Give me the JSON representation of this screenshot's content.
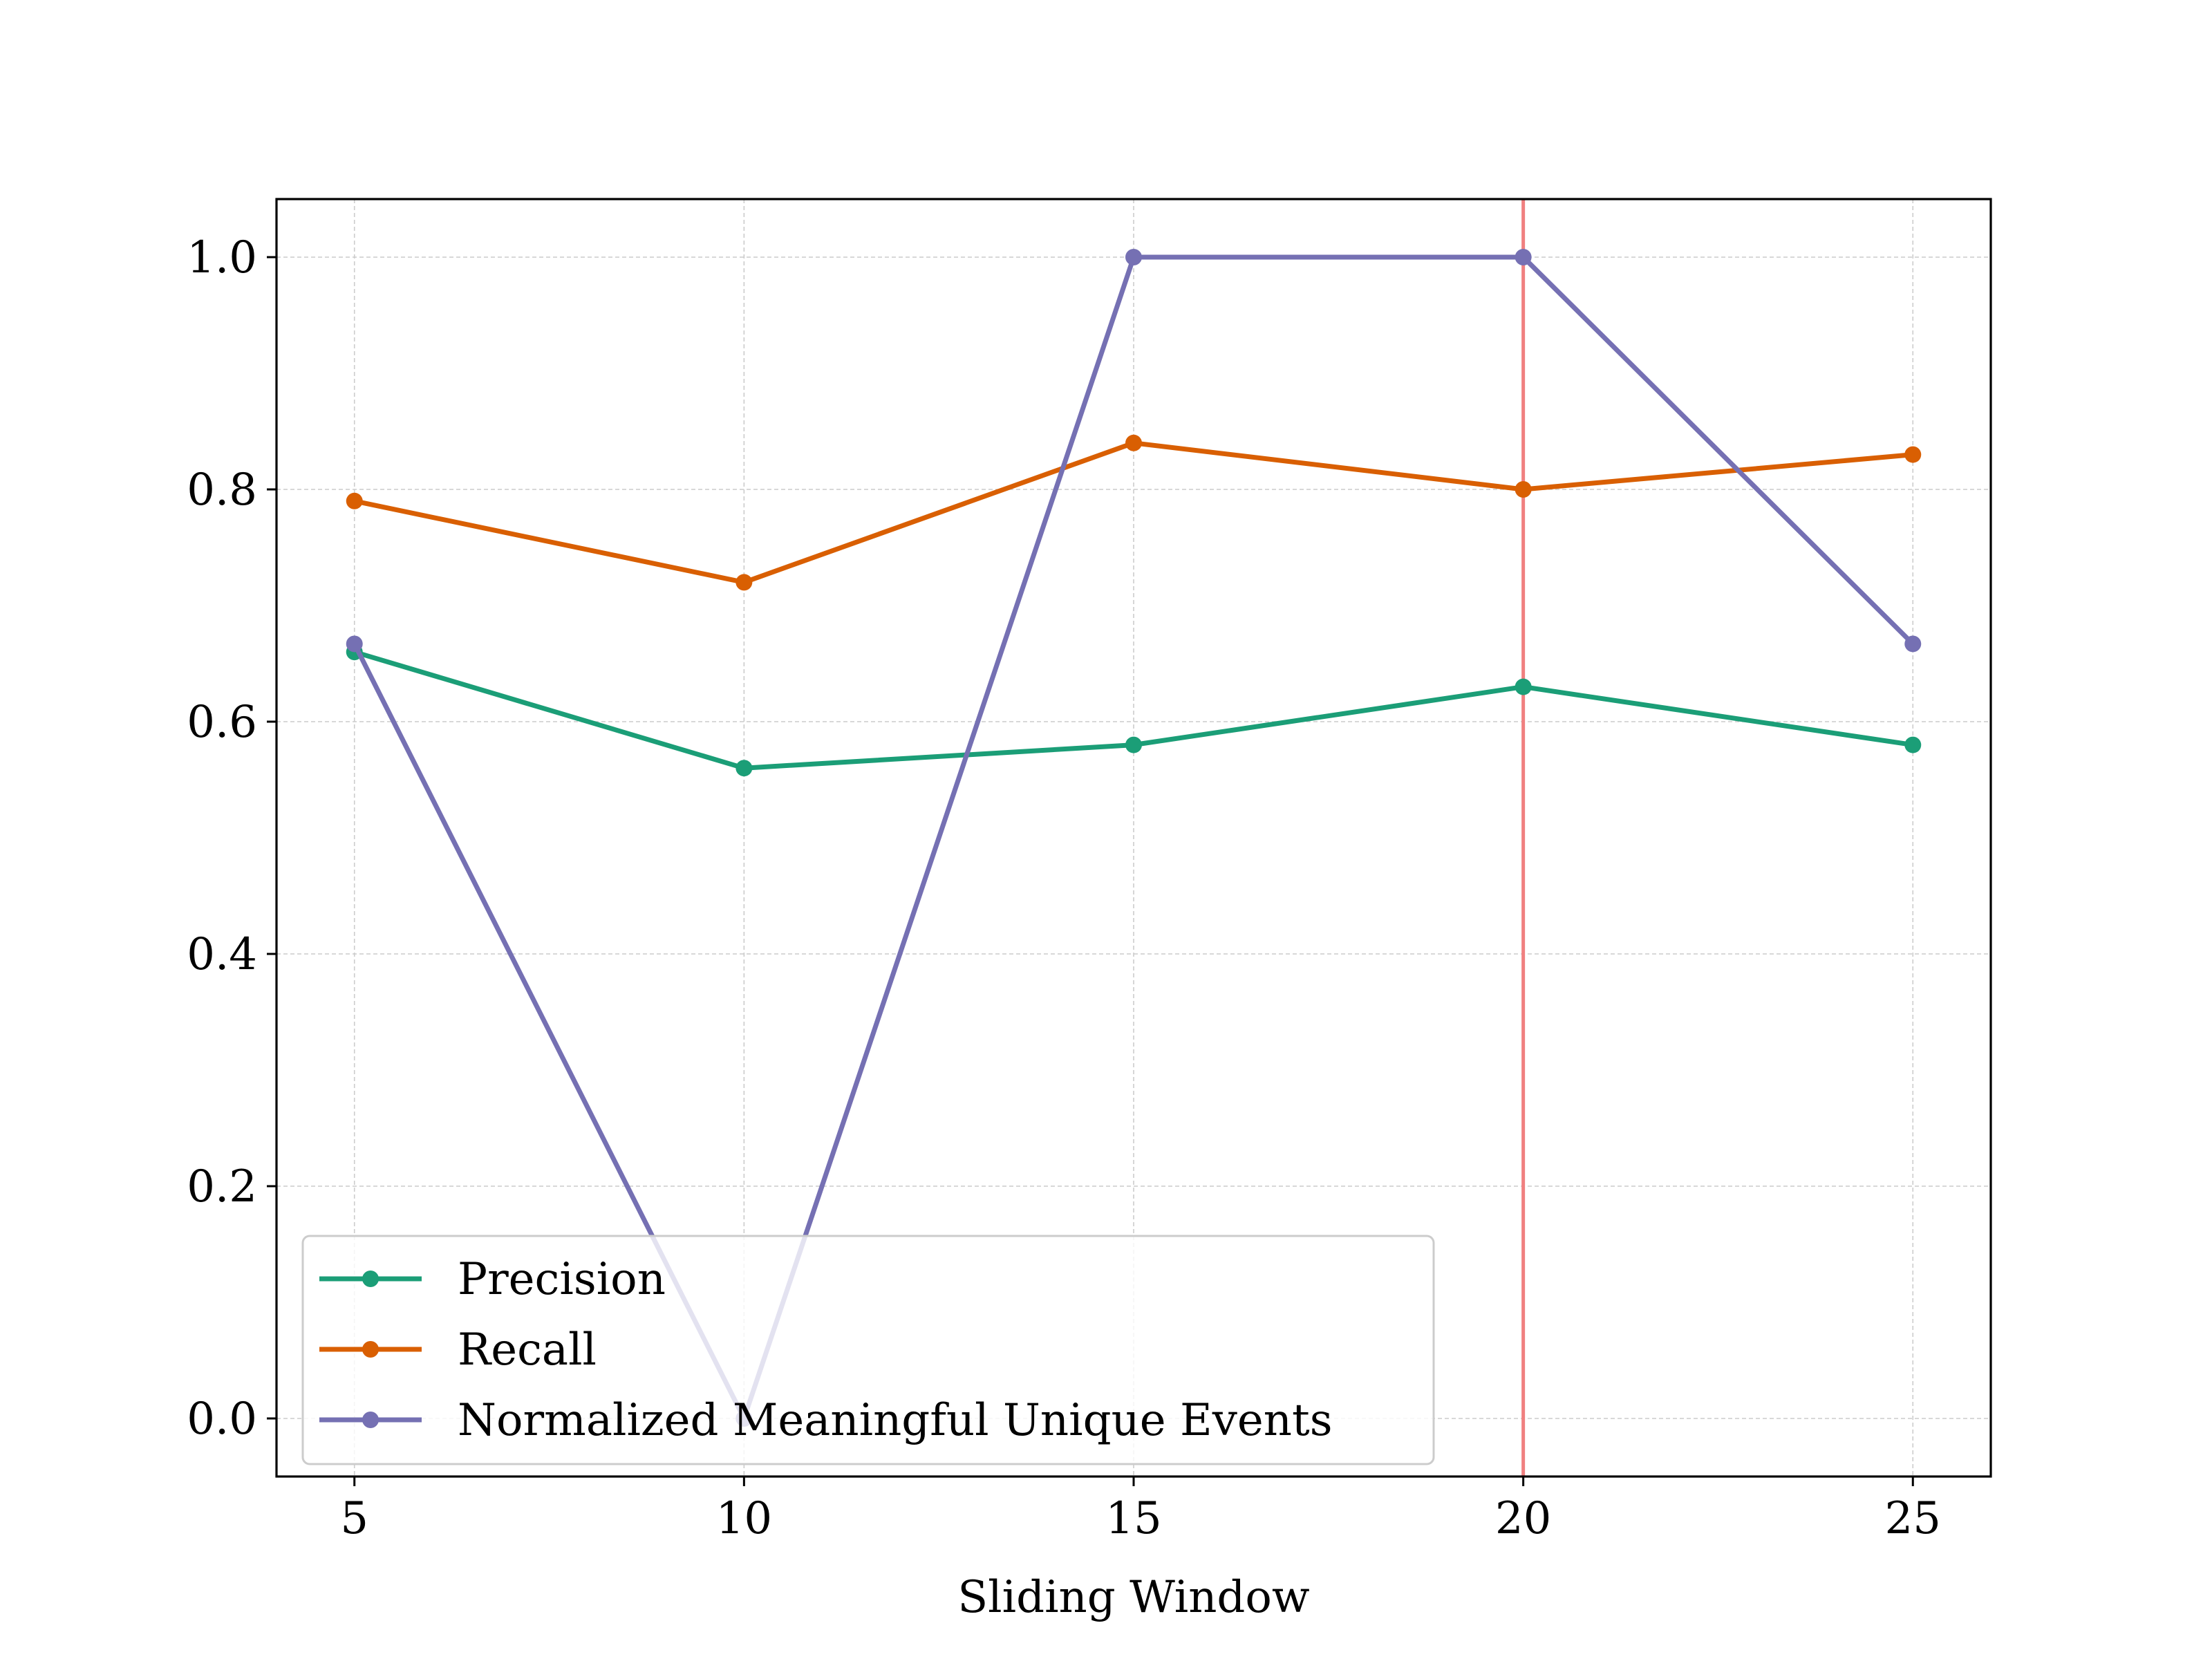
{
  "chart_data": {
    "type": "line",
    "title": "",
    "xlabel": "Sliding Window",
    "ylabel": "",
    "x": [
      5,
      10,
      15,
      20,
      25
    ],
    "xlim": [
      4,
      26
    ],
    "ylim": [
      -0.05,
      1.05
    ],
    "x_ticks": [
      5,
      10,
      15,
      20,
      25
    ],
    "x_tick_labels": [
      "5",
      "10",
      "15",
      "20",
      "25"
    ],
    "y_ticks": [
      0.0,
      0.2,
      0.4,
      0.6,
      0.8,
      1.0
    ],
    "y_tick_labels": [
      "0.0",
      "0.2",
      "0.4",
      "0.6",
      "0.8",
      "1.0"
    ],
    "grid": true,
    "legend_position": "lower-left",
    "series": [
      {
        "name": "Precision",
        "values": [
          0.66,
          0.56,
          0.58,
          0.63,
          0.58
        ],
        "color": "#1b9e77"
      },
      {
        "name": "Recall",
        "values": [
          0.79,
          0.72,
          0.84,
          0.8,
          0.83
        ],
        "color": "#d95f02"
      },
      {
        "name": "Normalized Meaningful Unique Events",
        "values": [
          0.667,
          0.0,
          1.0,
          1.0,
          0.667
        ],
        "color": "#7570b3"
      }
    ],
    "vertical_line": {
      "x": 20,
      "color": "#f08080"
    }
  }
}
